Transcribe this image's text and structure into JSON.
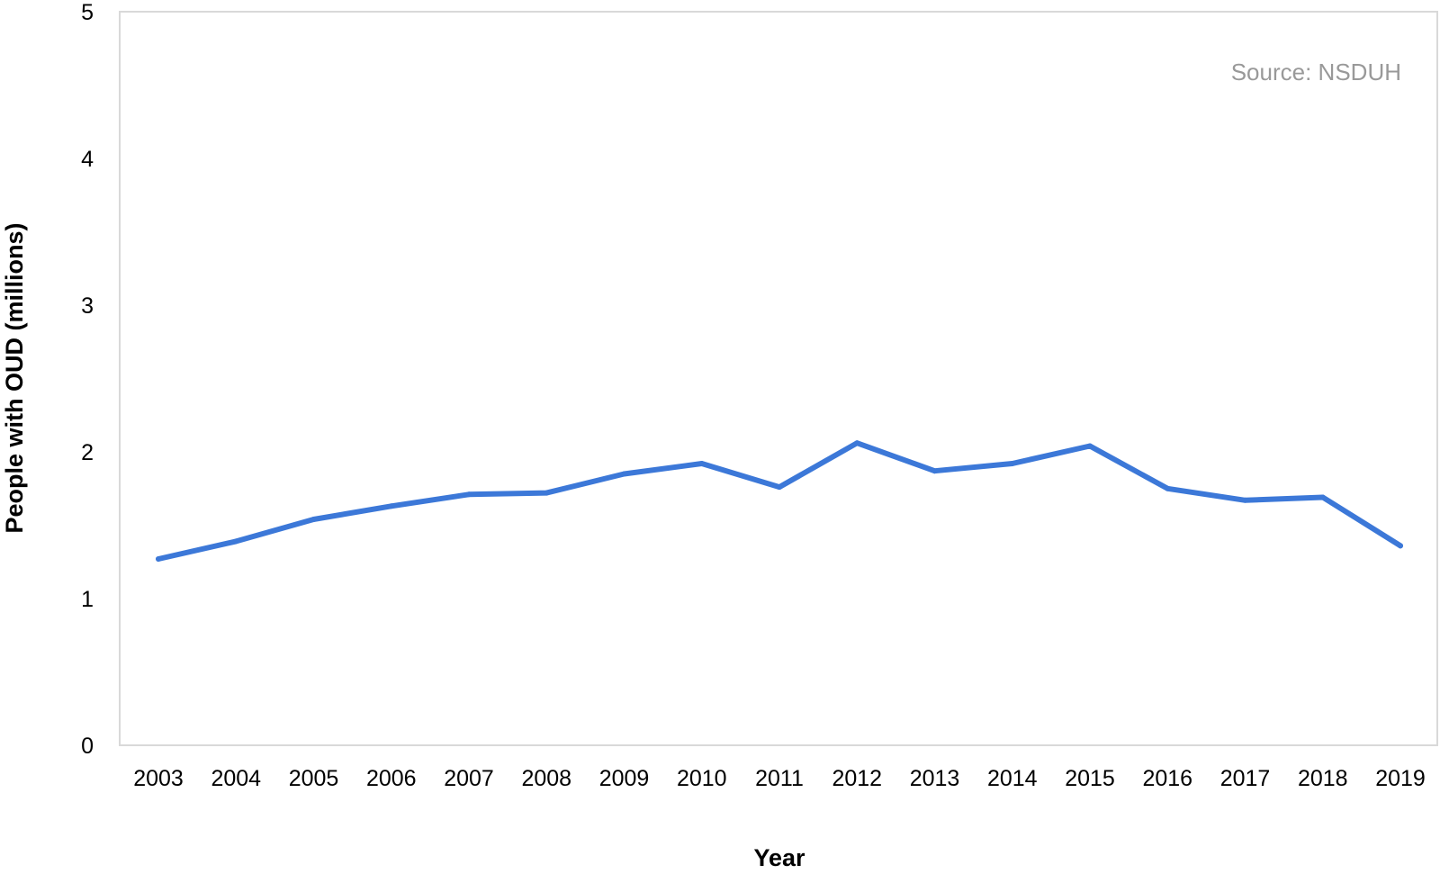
{
  "chart_data": {
    "type": "line",
    "title": "",
    "xlabel": "Year",
    "ylabel": "People with OUD (millions)",
    "annotation": "Source: NSDUH",
    "ylim": [
      0,
      5
    ],
    "yticks": [
      "0",
      "1",
      "2",
      "3",
      "4",
      "5"
    ],
    "grid": false,
    "legend": "none",
    "categories": [
      "2003",
      "2004",
      "2005",
      "2006",
      "2007",
      "2008",
      "2009",
      "2010",
      "2011",
      "2012",
      "2013",
      "2014",
      "2015",
      "2016",
      "2017",
      "2018",
      "2019"
    ],
    "series": [
      {
        "values": [
          1.27,
          1.39,
          1.54,
          1.63,
          1.71,
          1.72,
          1.85,
          1.92,
          1.76,
          2.06,
          1.87,
          1.92,
          2.04,
          1.75,
          1.67,
          1.69,
          1.36
        ],
        "color": "#3C78D8"
      }
    ]
  }
}
